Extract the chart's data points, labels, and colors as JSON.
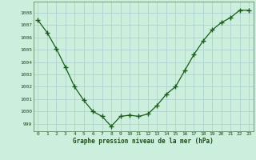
{
  "x": [
    0,
    1,
    2,
    3,
    4,
    5,
    6,
    7,
    8,
    9,
    10,
    11,
    12,
    13,
    14,
    15,
    16,
    17,
    18,
    19,
    20,
    21,
    22,
    23
  ],
  "y": [
    1007.4,
    1006.4,
    1005.1,
    1003.6,
    1002.0,
    1000.9,
    1000.0,
    999.6,
    998.8,
    999.6,
    999.7,
    999.6,
    999.8,
    1000.5,
    1001.4,
    1002.0,
    1003.3,
    1004.6,
    1005.7,
    1006.6,
    1007.2,
    1007.6,
    1008.2,
    1008.2
  ],
  "ylabel_ticks": [
    999,
    1000,
    1001,
    1002,
    1003,
    1004,
    1005,
    1006,
    1007,
    1008
  ],
  "xlabel_label": "Graphe pression niveau de la mer (hPa)",
  "line_color": "#1a5c1a",
  "marker_color": "#1a5c1a",
  "bg_color": "#cceedd",
  "grid_color": "#aacccc",
  "ylim": [
    998.4,
    1008.9
  ],
  "xlim": [
    -0.5,
    23.5
  ]
}
